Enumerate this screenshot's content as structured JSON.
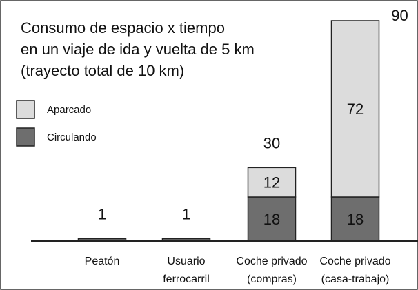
{
  "chart_data": {
    "type": "stacked_bar",
    "title": "Consumo de espacio x tiempo\nen un viaje de ida y vuelta de 5 km\n(trayecto total de 10 km)",
    "categories": [
      "Peatón",
      "Usuario\nferrocarril",
      "Coche privado\n(compras)",
      "Coche privado\n(casa-trabajo)"
    ],
    "series": [
      {
        "name": "Circulando",
        "color": "#6e6e6e",
        "values": [
          1,
          1,
          18,
          18
        ]
      },
      {
        "name": "Aparcado",
        "color": "#dcdcdc",
        "values": [
          null,
          null,
          12,
          72
        ]
      }
    ],
    "totals": [
      1,
      1,
      30,
      90
    ],
    "ylim": [
      0,
      90
    ]
  }
}
